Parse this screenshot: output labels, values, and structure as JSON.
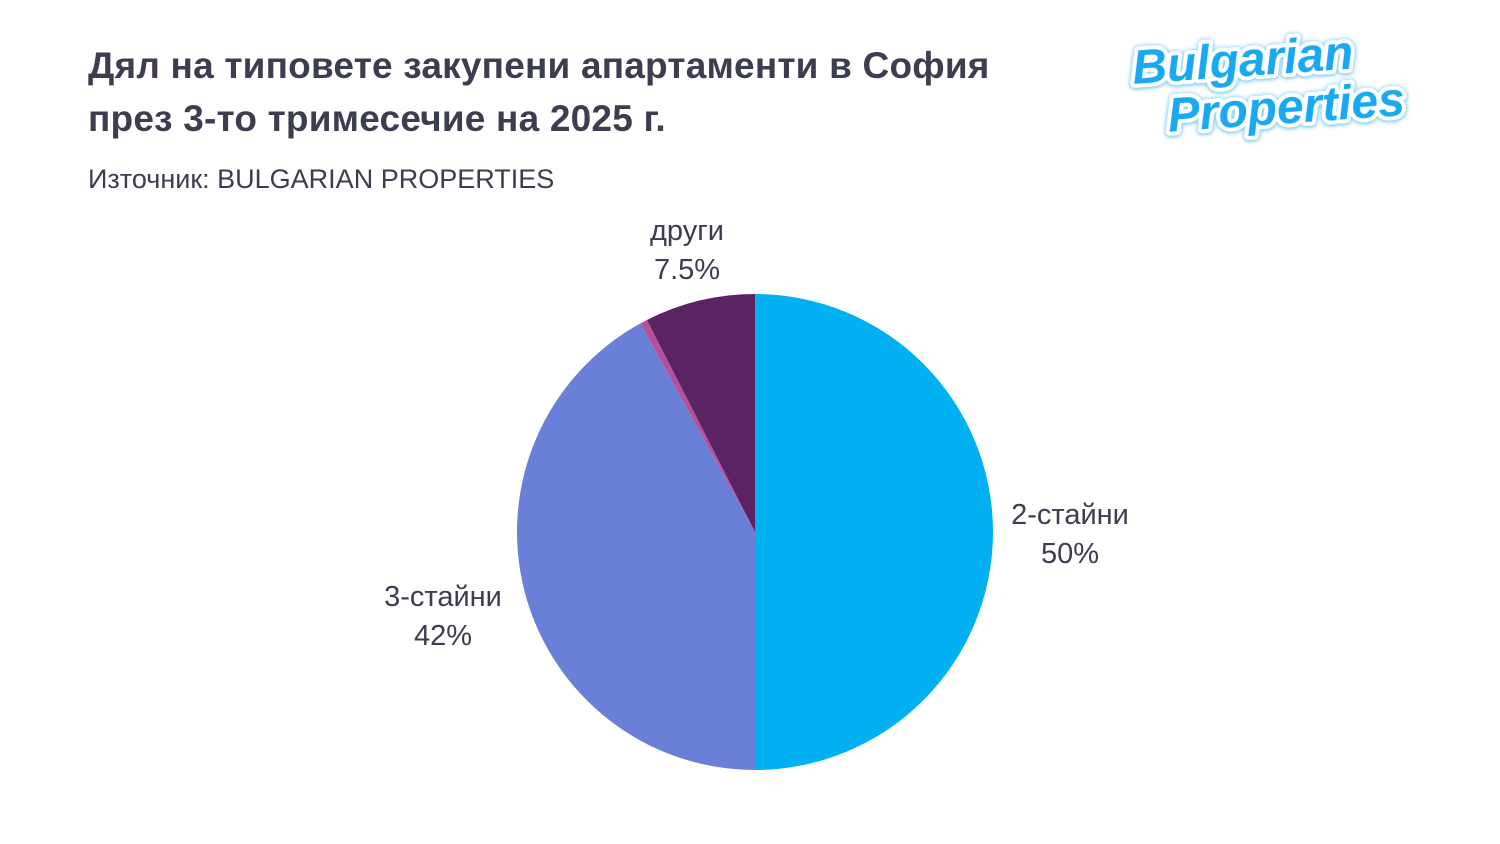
{
  "page": {
    "background": "#ffffff",
    "text_color": "#3c3d4f"
  },
  "header": {
    "title": "Дял на типовете закупени апартаменти в София\nпрез 3-то тримесечие на 2025 г.",
    "source": "Източник: BULGARIAN PROPERTIES"
  },
  "logo": {
    "line1": "Bulgarian",
    "line2": "Properties",
    "color": "#18a9f2"
  },
  "chart_data": {
    "type": "pie",
    "title": "Дял на типовете закупени апартаменти в София през 3-то тримесечие на 2025 г.",
    "source": "Източник: BULGARIAN PROPERTIES",
    "start_angle_deg": 0,
    "direction": "clockwise",
    "legend": "none",
    "slices": [
      {
        "label": "2-стайни",
        "value": 50,
        "value_label": "50%",
        "color": "#00b0f0"
      },
      {
        "label": "3-стайни",
        "value": 42,
        "value_label": "42%",
        "color": "#6a80d8"
      },
      {
        "label": "",
        "value": 0.5,
        "value_label": "",
        "color": "#b5519c"
      },
      {
        "label": "други",
        "value": 7.5,
        "value_label": "7.5%",
        "color": "#5b2264"
      }
    ]
  }
}
